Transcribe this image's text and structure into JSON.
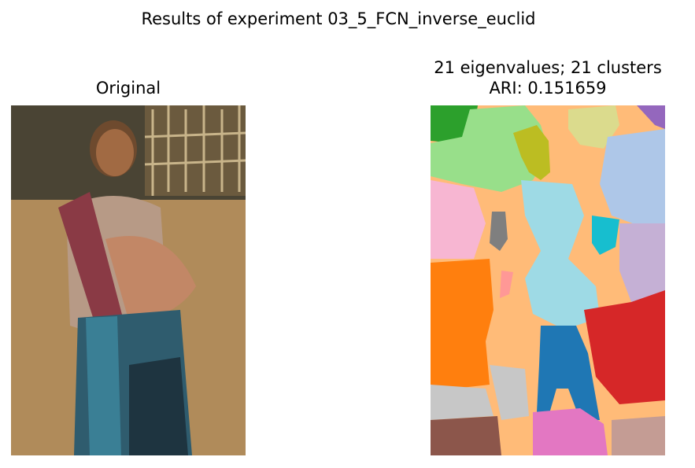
{
  "figure": {
    "suptitle": "Results of experiment 03_5_FCN_inverse_euclid",
    "left_title": "Original",
    "right_title_line1": "21 eigenvalues; 21 clusters",
    "right_title_line2": "ARI: 0.151659"
  },
  "segmentation": {
    "eigenvalues": 21,
    "clusters": 21,
    "ari": 0.151659,
    "palette": [
      "#ffbb78",
      "#2ca02c",
      "#98df8a",
      "#bcbd22",
      "#dbdb8d",
      "#9467bd",
      "#aec7e8",
      "#f7b6d2",
      "#7f7f7f",
      "#9edae5",
      "#17becf",
      "#c5b0d5",
      "#ff7f0e",
      "#ff9896",
      "#d62728",
      "#1f77b4",
      "#c7c7c7",
      "#8c564b",
      "#e377c2",
      "#c49c94"
    ]
  }
}
